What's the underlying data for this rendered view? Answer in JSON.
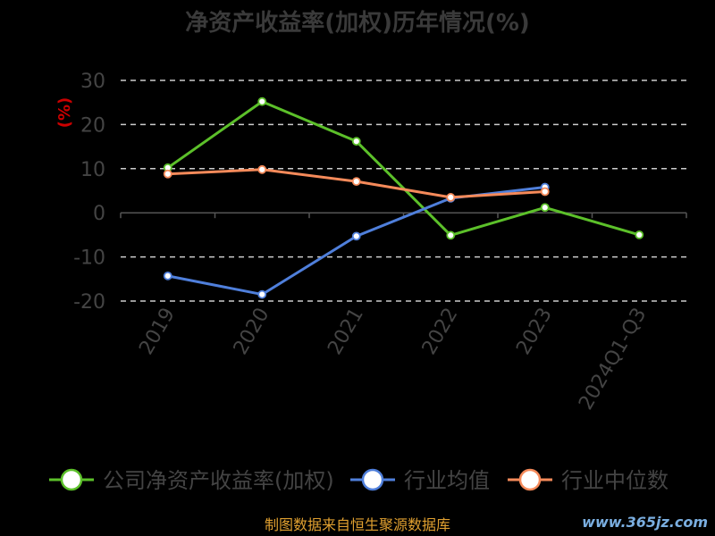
{
  "chart_data": {
    "type": "line",
    "title": "净资产收益率(加权)历年情况(%)",
    "ylabel": "(%)",
    "xlabel": "",
    "categories": [
      "2019",
      "2020",
      "2021",
      "2022",
      "2023",
      "2024Q1-Q3"
    ],
    "ylim": [
      -20,
      30
    ],
    "yticks": [
      30,
      20,
      10,
      0,
      -10,
      -20
    ],
    "grid": true,
    "legend_position": "bottom",
    "series": [
      {
        "name": "公司净资产收益率(加权)",
        "color": "#5cc02a",
        "values": [
          10.2,
          25.2,
          16.2,
          -5.1,
          1.2,
          -5.0
        ]
      },
      {
        "name": "行业均值",
        "color": "#4f7fdb",
        "values": [
          -14.3,
          -18.5,
          -5.3,
          3.3,
          5.8,
          null
        ]
      },
      {
        "name": "行业中位数",
        "color": "#f58a5a",
        "values": [
          8.8,
          9.8,
          7.1,
          3.5,
          4.8,
          null
        ]
      }
    ]
  },
  "source": "制图数据来自恒生聚源数据库",
  "watermark": "www.365jz.com",
  "colors": {
    "background": "#000000",
    "axis": "#555555",
    "grid": "#cccccc",
    "ylabel": "#cc0000",
    "source": "#e0a030",
    "watermark": "#7aaee0"
  }
}
